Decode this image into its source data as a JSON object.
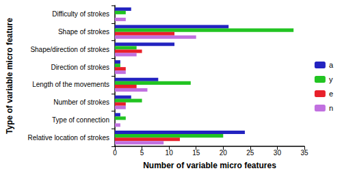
{
  "chart_data": {
    "type": "bar",
    "orientation": "horizontal",
    "x_label": "Number of variable micro features",
    "y_label": "Type of variable micro feature",
    "categories": [
      "Difficulty of strokes",
      "Shape of strokes",
      "Shape/direction of strokes",
      "Direction of strokes",
      "Length of the movements",
      "Number of strokes",
      "Type of connection",
      "Relative location of strokes"
    ],
    "series": [
      {
        "name": "a",
        "color": "#2323c0",
        "values": [
          3,
          21,
          11,
          1,
          8,
          3,
          1,
          24
        ]
      },
      {
        "name": "y",
        "color": "#22c422",
        "values": [
          2,
          33,
          4,
          1,
          14,
          5,
          2,
          20
        ]
      },
      {
        "name": "e",
        "color": "#e8202a",
        "values": [
          0,
          11,
          5,
          2,
          4,
          2,
          0,
          12
        ]
      },
      {
        "name": "n",
        "color": "#c170e0",
        "values": [
          2,
          15,
          4,
          2,
          6,
          2,
          1,
          9
        ]
      }
    ],
    "xlim": [
      0,
      35
    ],
    "xticks": [
      0,
      5,
      10,
      15,
      20,
      25,
      30,
      35
    ],
    "legend": "right",
    "grid": false
  }
}
